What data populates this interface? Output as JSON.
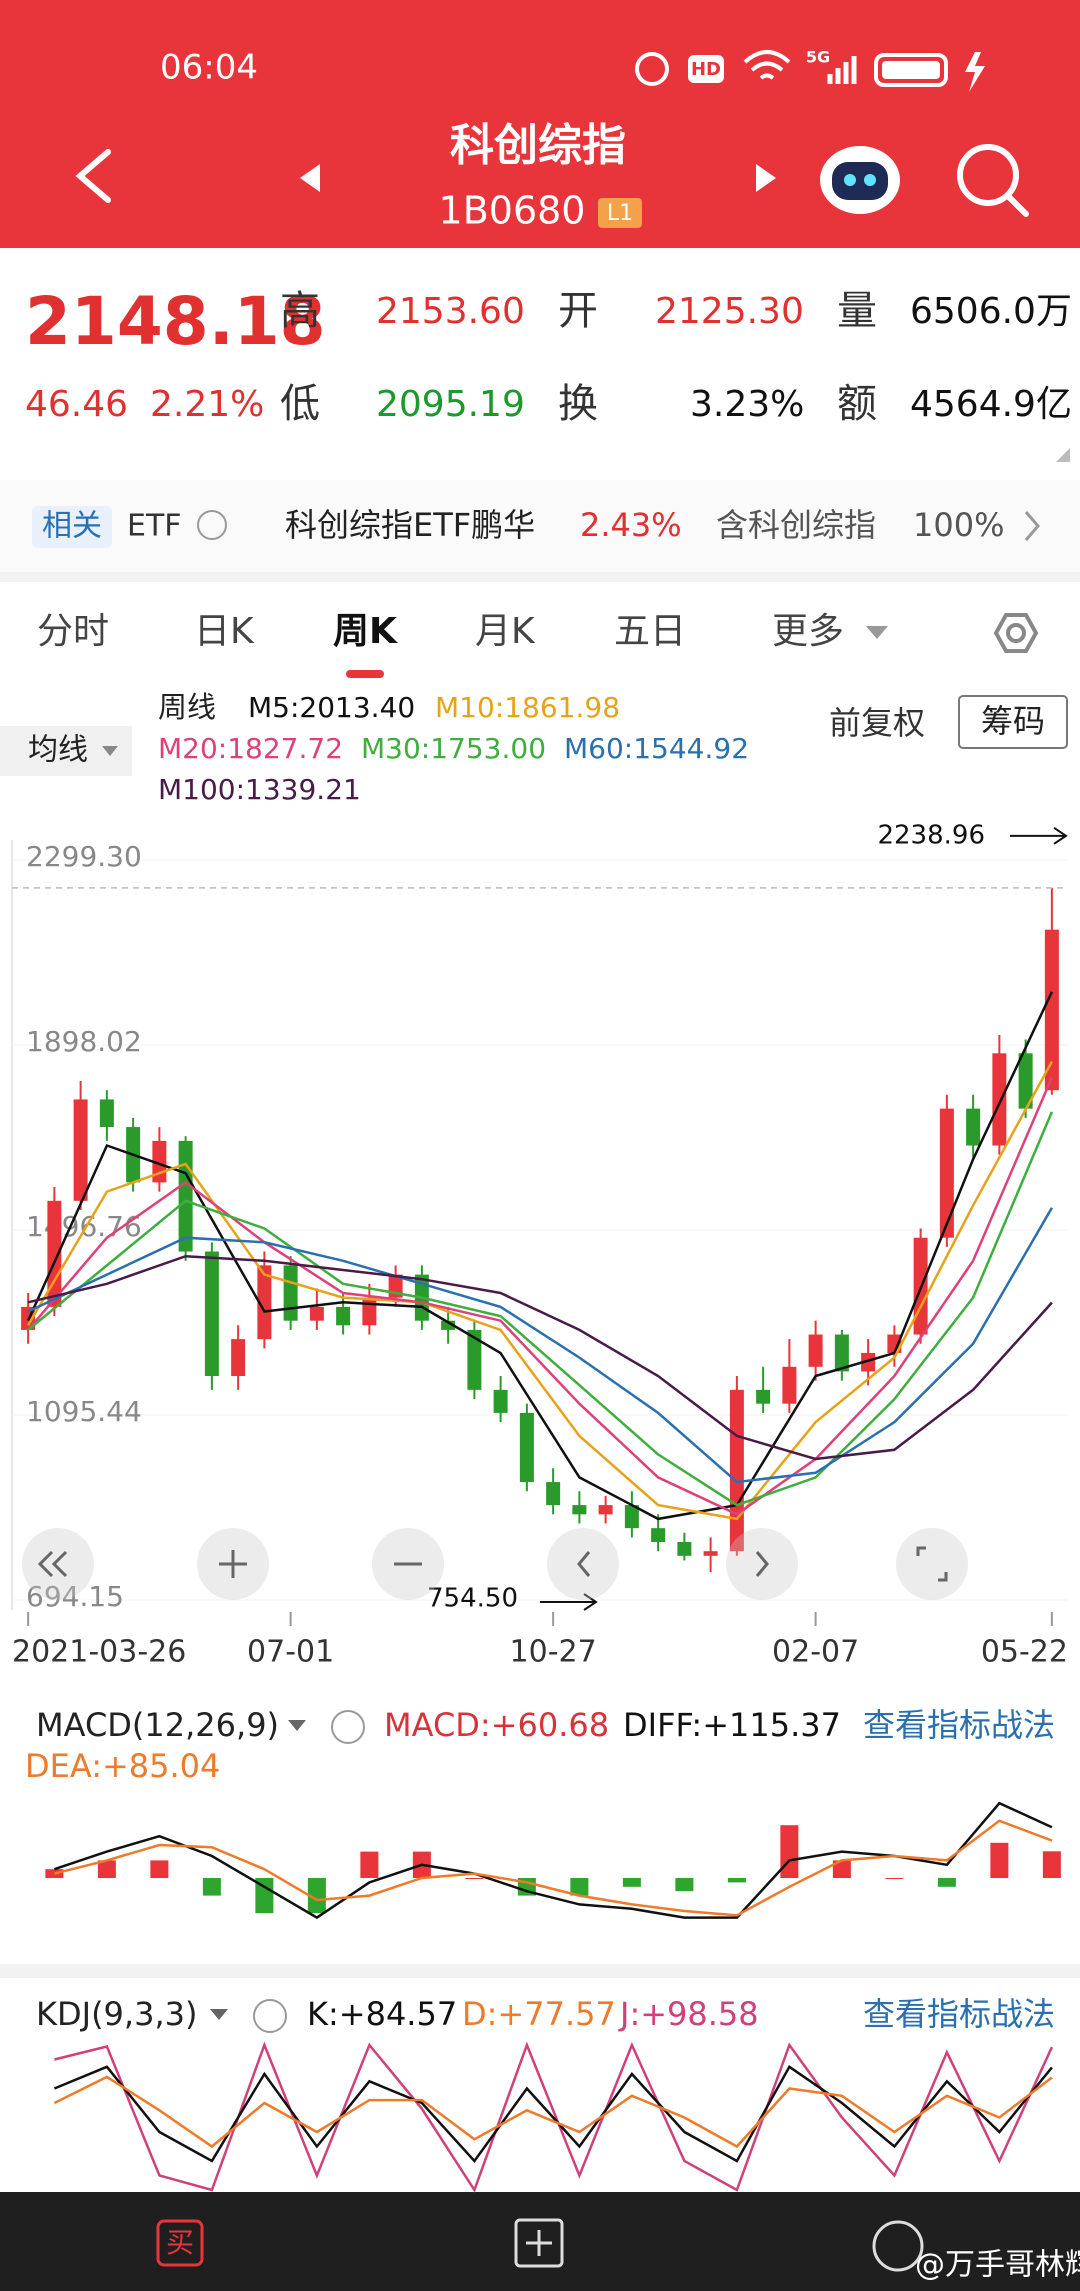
{
  "header": {
    "time": "06:04",
    "status_hd": "HD",
    "status_network": "5G",
    "title": "科创综指",
    "code": "1B0680",
    "level": "L1"
  },
  "quote": {
    "price": "2148.18",
    "change": "46.46",
    "change_pct": "2.21%",
    "high_label": "高",
    "high": "2153.60",
    "open_label": "开",
    "open": "2125.30",
    "volume_label": "量",
    "volume": "6506.0万",
    "low_label": "低",
    "low": "2095.19",
    "turnover_label": "换",
    "turnover": "3.23%",
    "amount_label": "额",
    "amount": "4564.9亿"
  },
  "etf": {
    "tag": "相关",
    "type": "ETF",
    "name": "科创综指ETF鹏华",
    "change": "2.43%",
    "holding_label": "含科创综指",
    "holding": "100%"
  },
  "tabs": [
    "分时",
    "日K",
    "周K",
    "月K",
    "五日",
    "更多"
  ],
  "toolbar": {
    "ma_button": "均线",
    "adjust": "前复权",
    "chips": "筹码"
  },
  "chart_data": {
    "type": "candlestick",
    "ma_title": "周线",
    "categories": [
      "2021-03-26",
      null,
      null,
      null,
      null,
      null,
      null,
      null,
      null,
      null,
      "07-01",
      null,
      null,
      null,
      null,
      null,
      null,
      null,
      null,
      null,
      "10-27",
      null,
      null,
      null,
      null,
      null,
      null,
      null,
      null,
      null,
      "02-07",
      null,
      null,
      null,
      null,
      null,
      null,
      null,
      null,
      "05-22"
    ],
    "open": [
      1280,
      1330,
      1560,
      1780,
      1720,
      1600,
      1690,
      1450,
      1180,
      1260,
      1420,
      1300,
      1330,
      1290,
      1350,
      1400,
      1300,
      1280,
      1150,
      1100,
      950,
      900,
      880,
      900,
      850,
      820,
      790,
      800,
      1150,
      1120,
      1200,
      1270,
      1190,
      1230,
      1270,
      1480,
      1760,
      1680,
      1880,
      1800
    ],
    "high": [
      1360,
      1590,
      1820,
      1800,
      1740,
      1720,
      1700,
      1470,
      1290,
      1450,
      1440,
      1370,
      1360,
      1380,
      1420,
      1420,
      1330,
      1300,
      1180,
      1120,
      980,
      930,
      920,
      930,
      880,
      840,
      830,
      1180,
      1200,
      1260,
      1300,
      1280,
      1260,
      1290,
      1500,
      1790,
      1790,
      1920,
      1910,
      2238.96
    ],
    "low": [
      1250,
      1310,
      1540,
      1690,
      1580,
      1580,
      1430,
      1150,
      1150,
      1240,
      1280,
      1280,
      1270,
      1270,
      1330,
      1280,
      1250,
      1130,
      1080,
      930,
      880,
      860,
      860,
      830,
      800,
      780,
      754.5,
      790,
      1100,
      1100,
      1170,
      1170,
      1160,
      1200,
      1250,
      1460,
      1650,
      1660,
      1740,
      1790
    ],
    "close": [
      1330,
      1560,
      1780,
      1720,
      1600,
      1690,
      1450,
      1180,
      1260,
      1420,
      1300,
      1330,
      1290,
      1350,
      1400,
      1300,
      1280,
      1150,
      1100,
      950,
      900,
      880,
      900,
      850,
      820,
      790,
      800,
      1150,
      1120,
      1200,
      1270,
      1190,
      1230,
      1270,
      1480,
      1760,
      1680,
      1880,
      1760,
      2148.18
    ],
    "up_color": "#e8343b",
    "down_color": "#2a9a2a",
    "ylim": [
      694.15,
      2299.3
    ],
    "yticks": [
      {
        "value": 2299.3,
        "label": "2299.30"
      },
      1898.02,
      1496.76,
      1095.44,
      694.15
    ],
    "high_marker": 2238.96,
    "low_marker": {
      "value": 754.5,
      "label": "754.50"
    },
    "ma_x": [
      0,
      3,
      6,
      9,
      12,
      15,
      18,
      21,
      24,
      27,
      30,
      33,
      36,
      39
    ],
    "ma_series": [
      {
        "label": "M5:2013.40",
        "color": "#111111",
        "values": [
          1300,
          1680,
          1620,
          1320,
          1340,
          1330,
          1230,
          960,
          870,
          900,
          1180,
          1230,
          1650,
          2013.4
        ]
      },
      {
        "label": "M10:1861.98",
        "color": "#e8a21a",
        "values": [
          1290,
          1580,
          1640,
          1400,
          1350,
          1340,
          1280,
          1050,
          900,
          870,
          1080,
          1220,
          1550,
          1861.98
        ]
      },
      {
        "label": "M20:1827.72",
        "color": "#e0407a",
        "values": [
          1280,
          1480,
          1600,
          1470,
          1360,
          1340,
          1300,
          1120,
          960,
          880,
          1000,
          1180,
          1430,
          1827.72
        ]
      },
      {
        "label": "M30:1753.00",
        "color": "#3fae3f",
        "values": [
          1280,
          1420,
          1560,
          1500,
          1380,
          1350,
          1310,
          1160,
          1010,
          900,
          960,
          1130,
          1350,
          1753.0
        ]
      },
      {
        "label": "M60:1544.92",
        "color": "#2a6fb0",
        "values": [
          1320,
          1400,
          1480,
          1470,
          1430,
          1380,
          1330,
          1220,
          1100,
          950,
          970,
          1080,
          1250,
          1544.92
        ]
      },
      {
        "label": "M100:1339.21",
        "color": "#4a1b48",
        "values": [
          1340,
          1380,
          1440,
          1430,
          1410,
          1390,
          1360,
          1280,
          1180,
          1050,
          1000,
          1020,
          1150,
          1339.21
        ]
      }
    ]
  },
  "macd": {
    "title": "MACD(12,26,9)",
    "link": "查看指标战法",
    "readouts": [
      {
        "label": "MACD:+60.68",
        "color": "#d8323a"
      },
      {
        "label": "DIFF:+115.37",
        "color": "#111111"
      },
      {
        "label": "DEA:+85.04",
        "color": "#ee7a2a"
      }
    ],
    "x": [
      1,
      3,
      5,
      7,
      9,
      11,
      13,
      15,
      17,
      19,
      21,
      23,
      25,
      27,
      29,
      31,
      33,
      35,
      37,
      39
    ],
    "hist": [
      20,
      40,
      40,
      -40,
      -80,
      -80,
      60,
      60,
      0,
      -40,
      -40,
      -20,
      -30,
      -10,
      120,
      40,
      0,
      -20,
      80,
      60.68
    ],
    "diff": [
      20,
      60,
      95,
      50,
      -20,
      -90,
      -10,
      30,
      10,
      -30,
      -60,
      -70,
      -90,
      -90,
      40,
      60,
      50,
      30,
      170,
      115.37
    ],
    "dea": [
      10,
      40,
      75,
      70,
      20,
      -50,
      -40,
      0,
      10,
      -10,
      -40,
      -60,
      -75,
      -85,
      -20,
      40,
      50,
      40,
      130,
      85.04
    ],
    "ylim": [
      -150,
      200
    ]
  },
  "kdj": {
    "title": "KDJ(9,3,3)",
    "link": "查看指标战法",
    "readouts": [
      {
        "label": "K:+84.57",
        "color": "#111111"
      },
      {
        "label": "D:+77.57",
        "color": "#ee7a2a"
      },
      {
        "label": "J:+98.58",
        "color": "#d0407a"
      }
    ],
    "x": [
      1,
      3,
      5,
      7,
      9,
      11,
      13,
      15,
      17,
      19,
      21,
      23,
      25,
      27,
      29,
      31,
      33,
      35,
      37,
      39
    ],
    "k": [
      70,
      85,
      40,
      20,
      80,
      30,
      75,
      60,
      20,
      70,
      30,
      80,
      40,
      20,
      85,
      60,
      30,
      75,
      40,
      84.57
    ],
    "d": [
      60,
      78,
      55,
      30,
      60,
      40,
      62,
      62,
      35,
      55,
      40,
      65,
      50,
      30,
      70,
      65,
      40,
      65,
      50,
      77.57
    ],
    "j": [
      90,
      99,
      10,
      0,
      100,
      10,
      100,
      56,
      0,
      100,
      10,
      100,
      20,
      0,
      100,
      50,
      10,
      95,
      20,
      98.58
    ],
    "ylim": [
      0,
      100
    ]
  },
  "bottom_nav": {
    "buy_icon": "买",
    "watermark": "@万手哥林辉"
  }
}
